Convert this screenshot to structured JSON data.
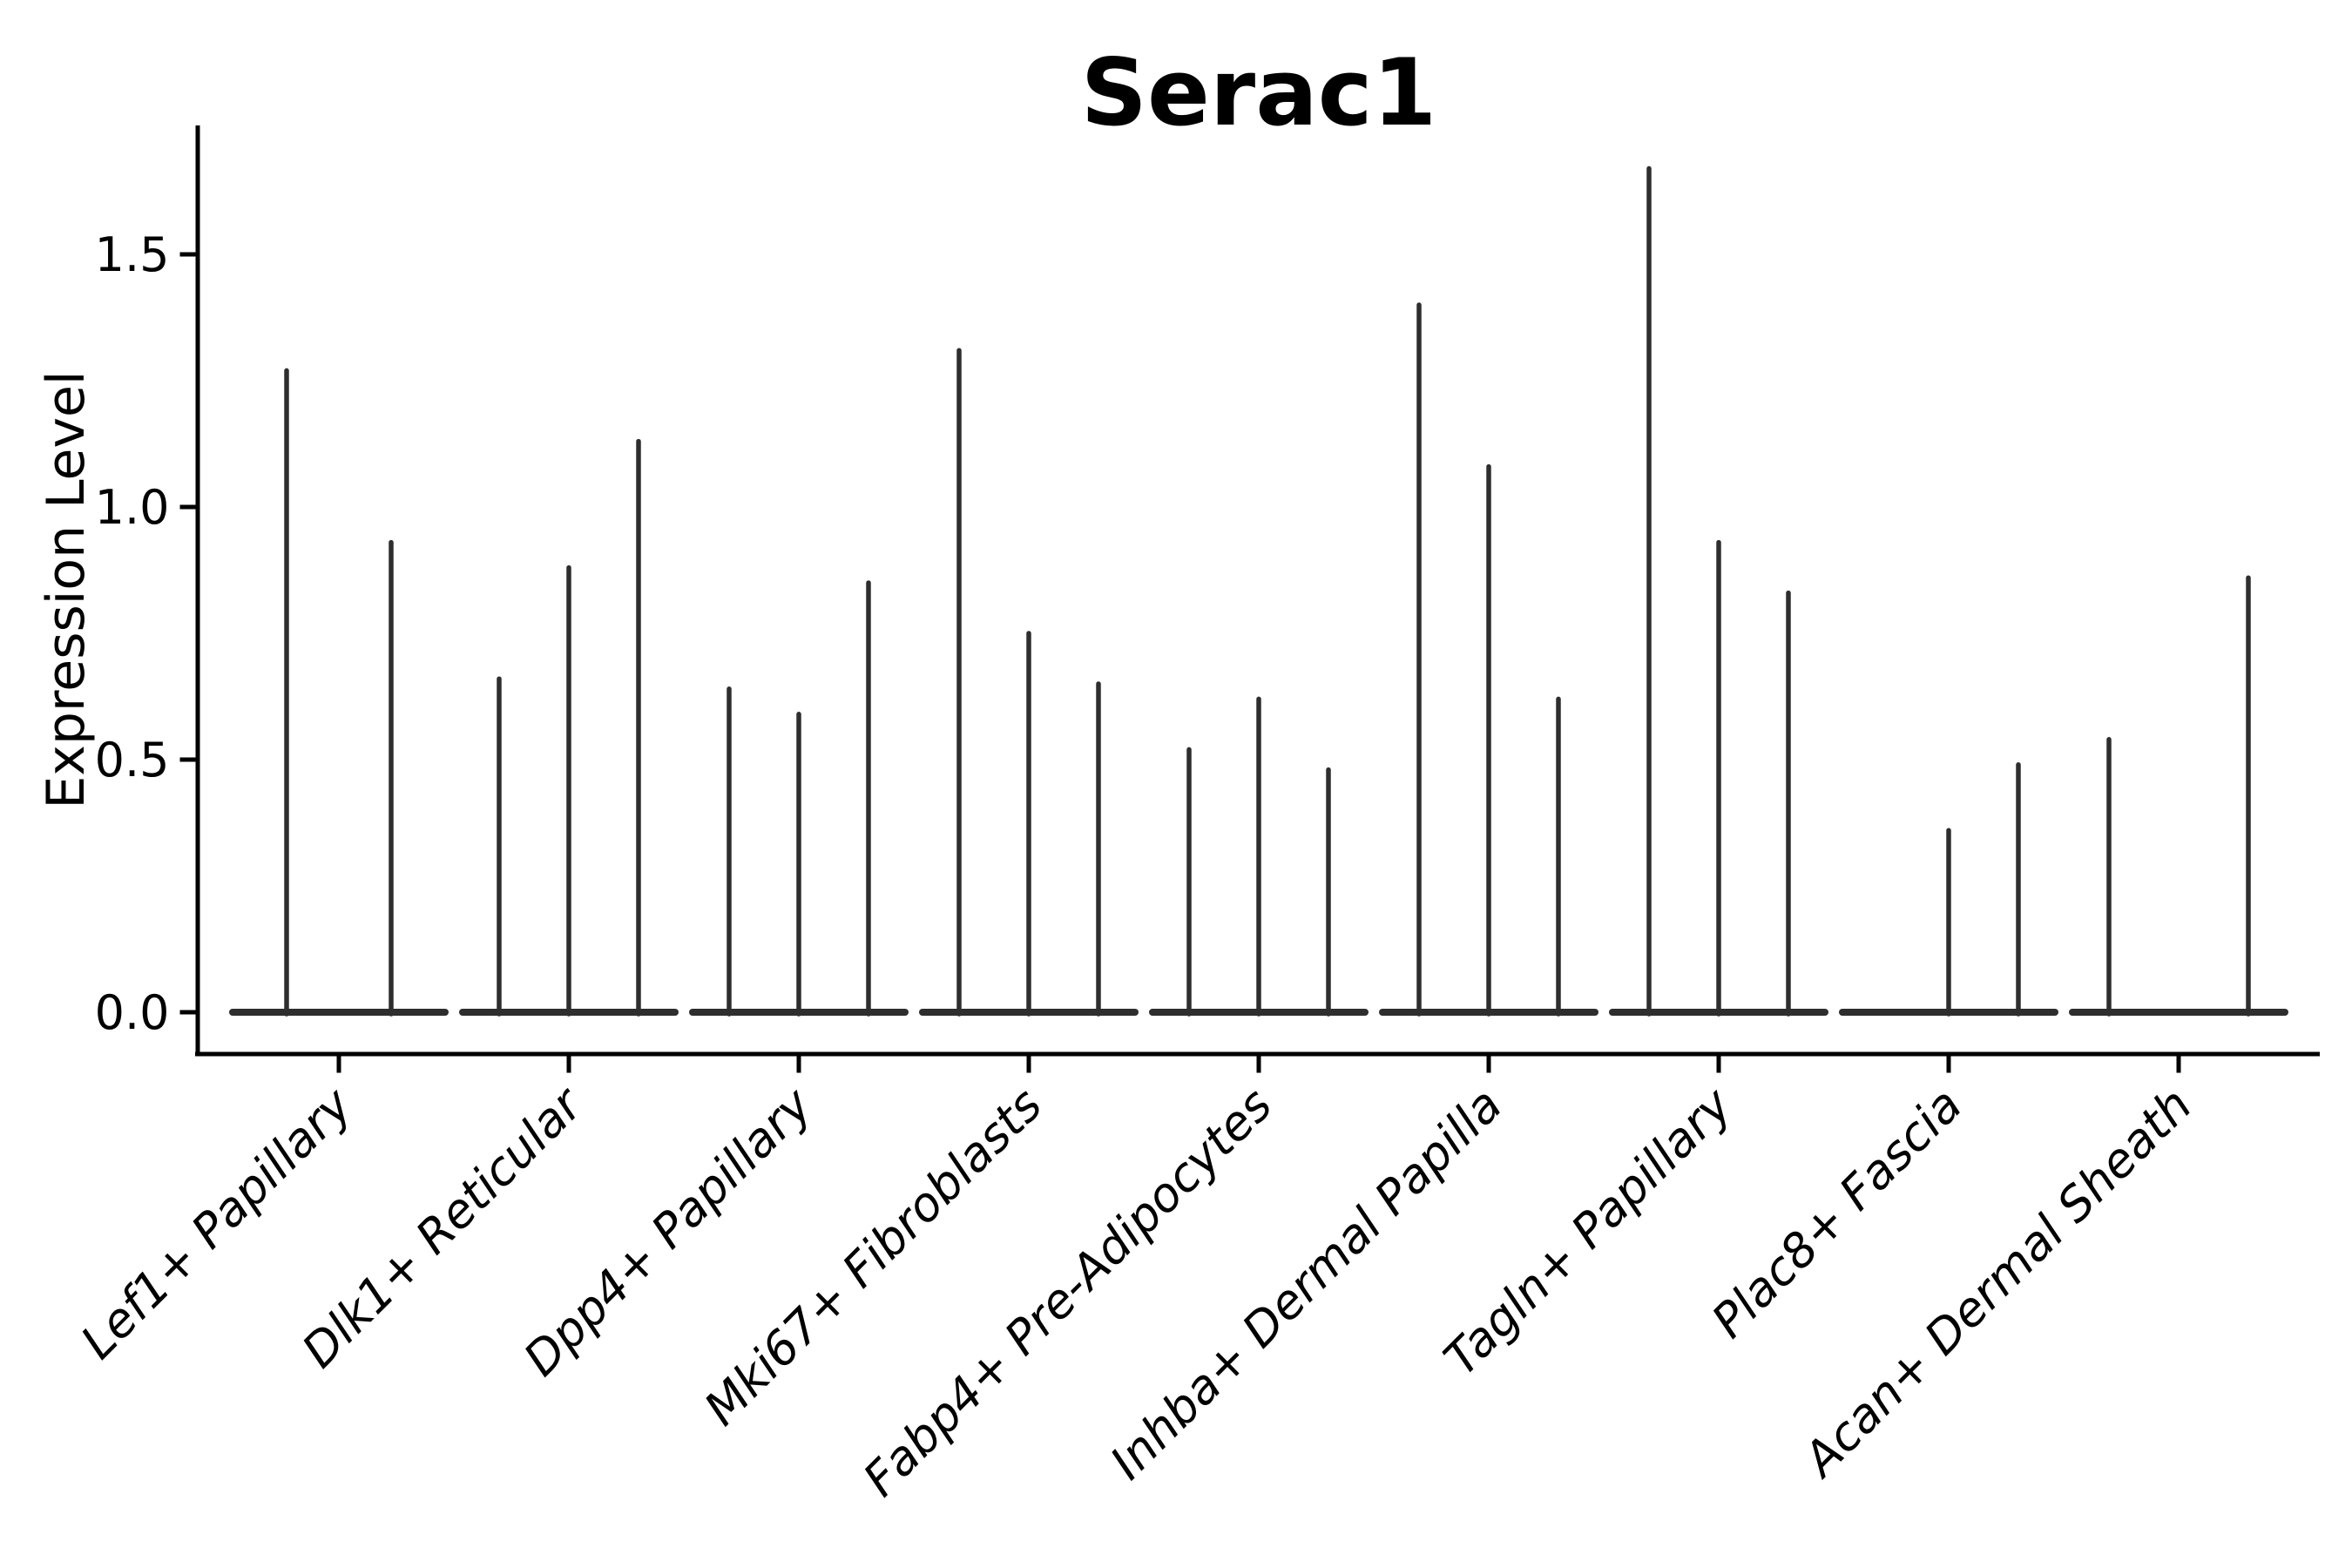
{
  "figure": {
    "title": "Serac1",
    "ylabel": "Expression Level"
  },
  "chart_data": {
    "type": "violin",
    "title": "Serac1",
    "xlabel": "",
    "ylabel": "Expression Level",
    "background": "#ffffff",
    "grid": false,
    "legend": null,
    "ylim": [
      -0.084,
      1.756
    ],
    "y_tick_values": [
      0.0,
      0.5,
      1.0,
      1.5
    ],
    "y_tick_labels": [
      "0.0",
      "0.5",
      "1.0",
      "1.5"
    ],
    "categories": [
      "Lef1+ Papillary",
      "Dlk1+ Reticular",
      "Dpp4+ Papillary",
      "Mki67+ Fibroblasts",
      "Fabp4+ Pre-Adipocytes",
      "Inhba+ Dermal Papilla",
      "Tagln+ Papillary",
      "Plac8+ Fascia",
      "Acan+ Dermal Sheath"
    ],
    "groups": [
      {
        "category": "Lef1+ Papillary",
        "violins": [
          {
            "offset": -60,
            "max": 1.27
          },
          {
            "offset": 60,
            "max": 0.93
          }
        ]
      },
      {
        "category": "Dlk1+ Reticular",
        "violins": [
          {
            "offset": -80,
            "max": 0.66
          },
          {
            "offset": 0,
            "max": 0.88
          },
          {
            "offset": 80,
            "max": 1.13
          }
        ]
      },
      {
        "category": "Dpp4+ Papillary",
        "violins": [
          {
            "offset": -80,
            "max": 0.64
          },
          {
            "offset": 0,
            "max": 0.59
          },
          {
            "offset": 80,
            "max": 0.85
          }
        ]
      },
      {
        "category": "Mki67+ Fibroblasts",
        "violins": [
          {
            "offset": -80,
            "max": 1.31
          },
          {
            "offset": 0,
            "max": 0.75
          },
          {
            "offset": 80,
            "max": 0.65
          }
        ]
      },
      {
        "category": "Fabp4+ Pre-Adipocytes",
        "violins": [
          {
            "offset": -80,
            "max": 0.52
          },
          {
            "offset": 0,
            "max": 0.62
          },
          {
            "offset": 80,
            "max": 0.48
          }
        ]
      },
      {
        "category": "Inhba+ Dermal Papilla",
        "violins": [
          {
            "offset": -80,
            "max": 1.4
          },
          {
            "offset": 0,
            "max": 1.08
          },
          {
            "offset": 80,
            "max": 0.62
          }
        ]
      },
      {
        "category": "Tagln+ Papillary",
        "violins": [
          {
            "offset": -80,
            "max": 1.67
          },
          {
            "offset": 0,
            "max": 0.93
          },
          {
            "offset": 80,
            "max": 0.83
          }
        ]
      },
      {
        "category": "Plac8+ Fascia",
        "violins": [
          {
            "offset": 0,
            "max": 0.36
          },
          {
            "offset": 80,
            "max": 0.49
          }
        ]
      },
      {
        "category": "Acan+ Dermal Sheath",
        "violins": [
          {
            "offset": -80,
            "max": 0.54
          },
          {
            "offset": 80,
            "max": 0.86
          }
        ]
      }
    ],
    "colors": {
      "violin": "#2e2e2e",
      "axis": "#000000",
      "text": "#000000"
    }
  }
}
